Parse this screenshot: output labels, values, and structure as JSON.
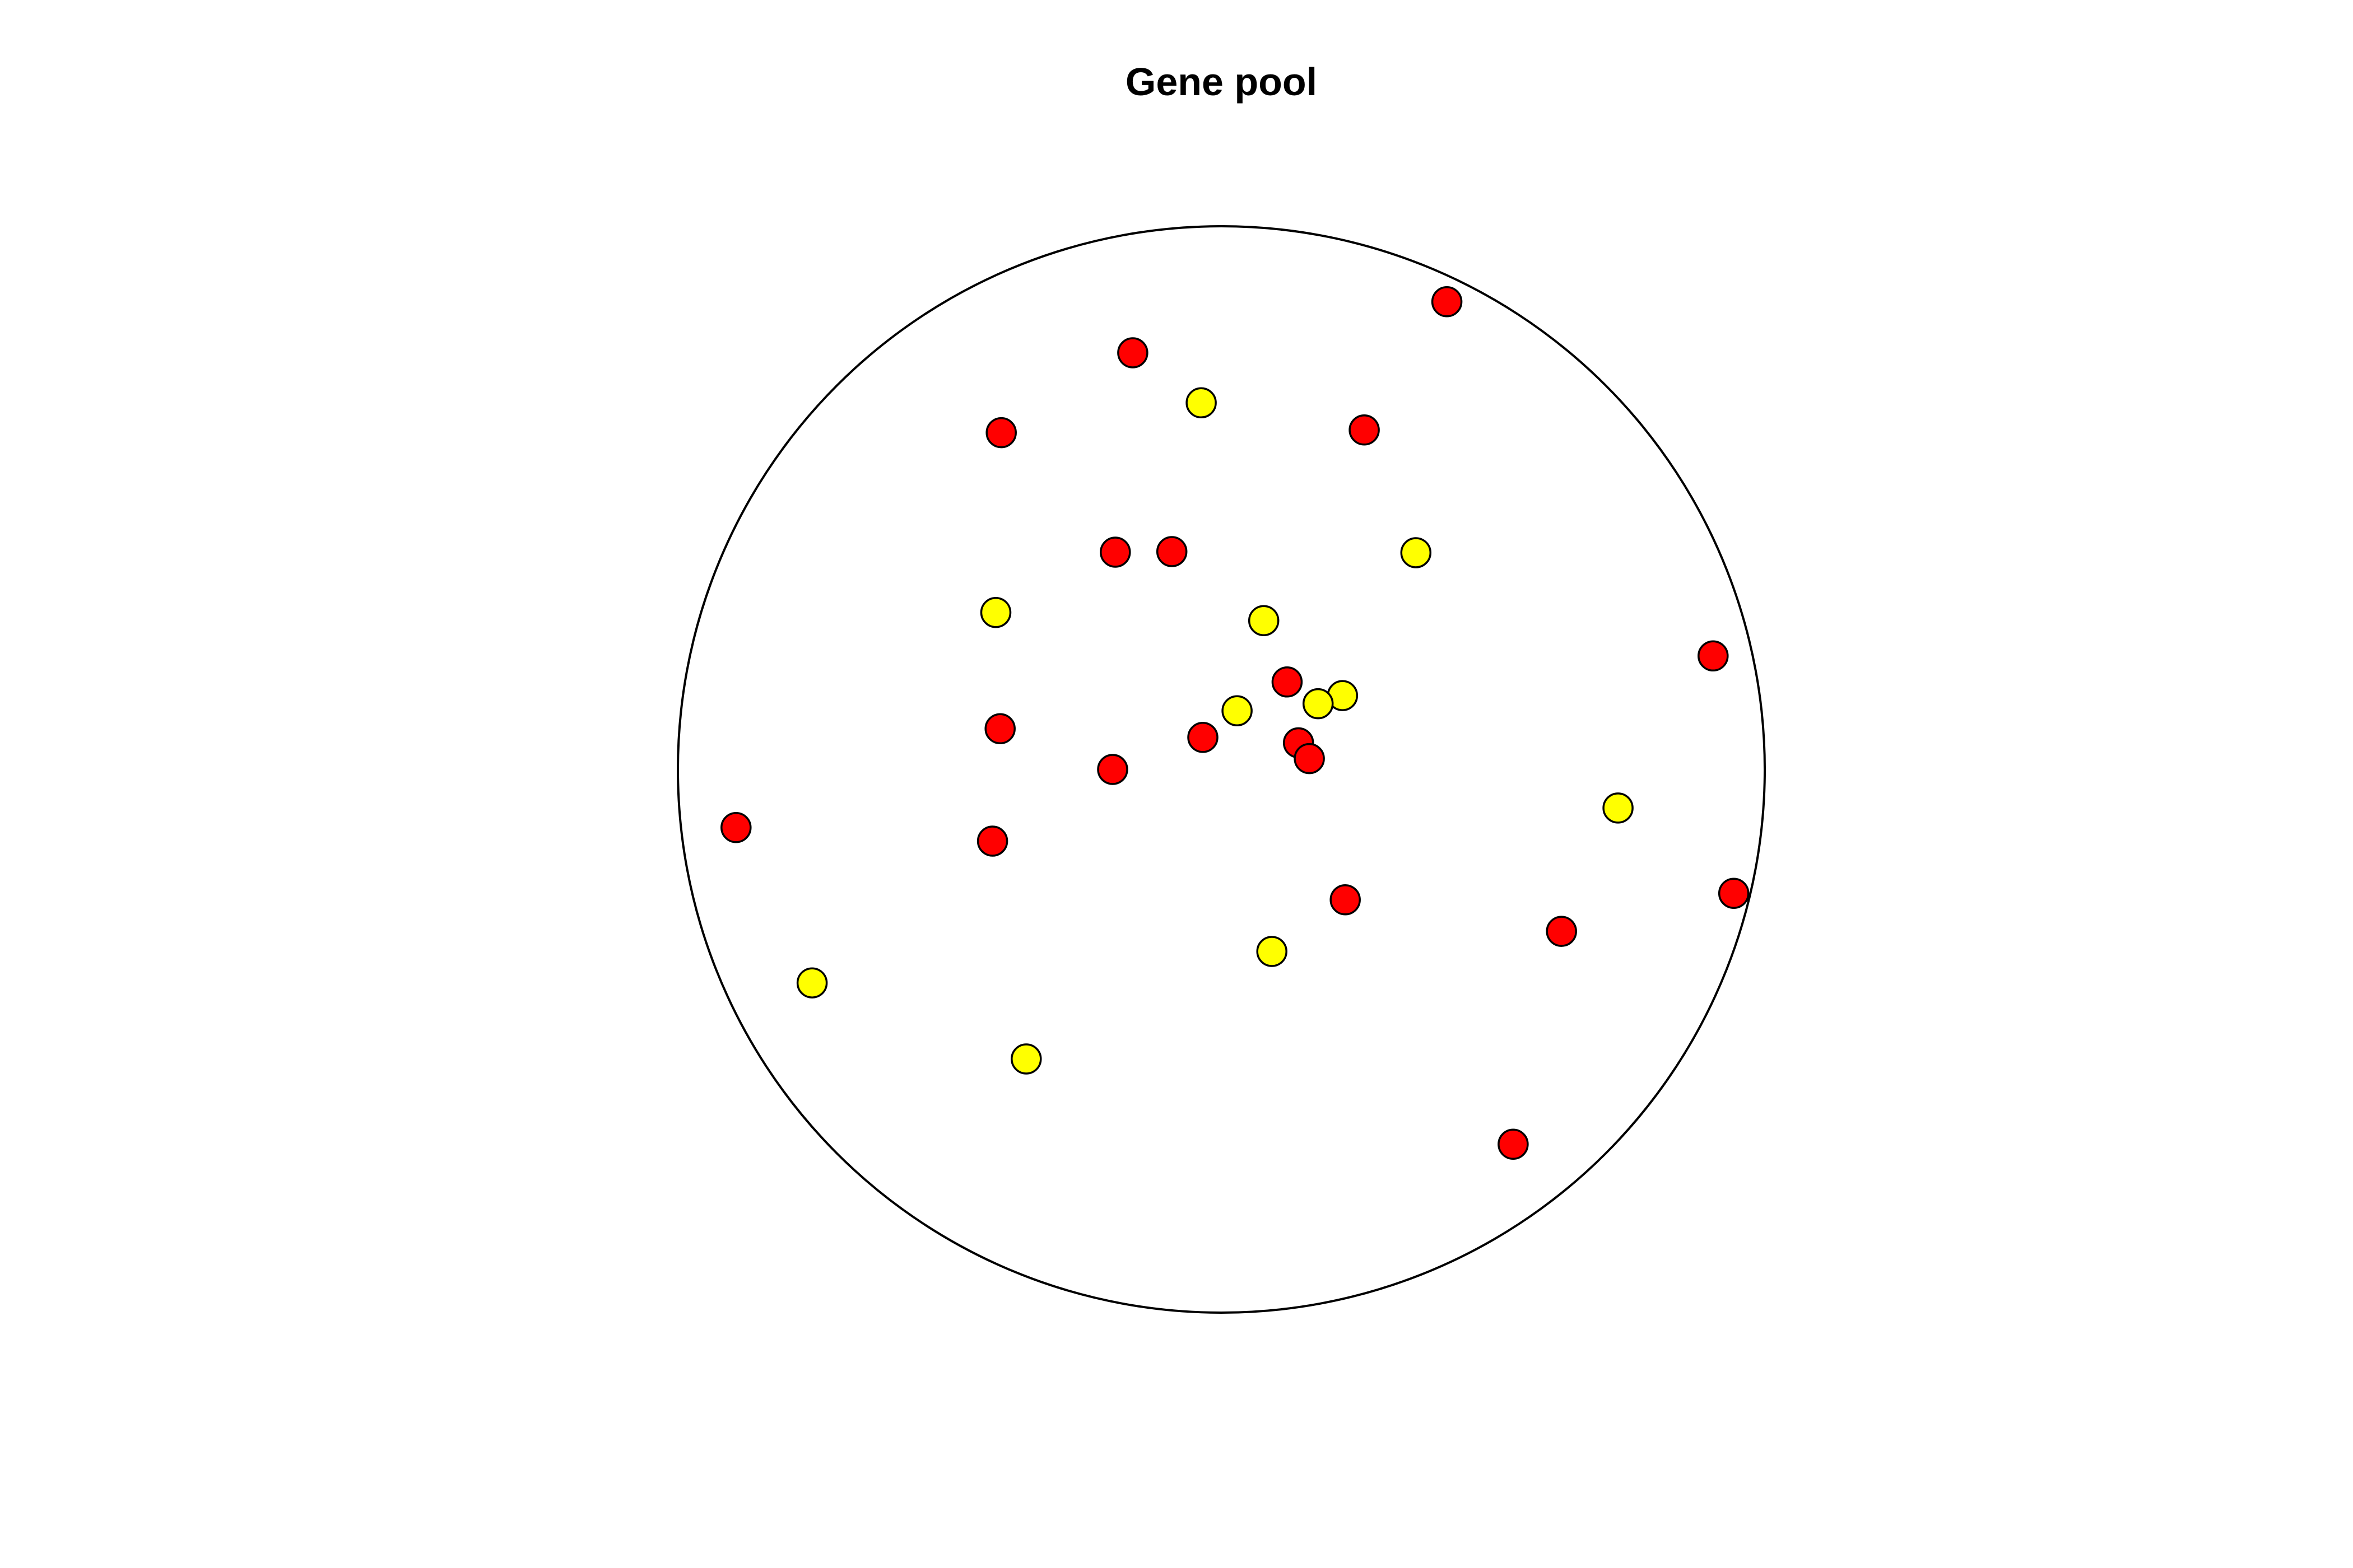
{
  "chart_data": {
    "type": "scatter",
    "title": "Gene pool",
    "xlabel": "",
    "ylabel": "",
    "xlim": [
      -1,
      1
    ],
    "ylim": [
      -1,
      1
    ],
    "grid": false,
    "boundary": "circle",
    "colors": {
      "red": "#ff0000",
      "yellow": "#ffff00",
      "outline": "#000000"
    },
    "series": [
      {
        "color": "#ff0000",
        "points": [
          {
            "x": 0.415,
            "y": 0.861
          },
          {
            "x": -0.163,
            "y": 0.767
          },
          {
            "x": -0.405,
            "y": 0.62
          },
          {
            "x": 0.263,
            "y": 0.625
          },
          {
            "x": -0.195,
            "y": 0.4
          },
          {
            "x": -0.091,
            "y": 0.401
          },
          {
            "x": 0.905,
            "y": 0.209
          },
          {
            "x": 0.121,
            "y": 0.161
          },
          {
            "x": -0.407,
            "y": 0.075
          },
          {
            "x": -0.034,
            "y": 0.059
          },
          {
            "x": 0.142,
            "y": 0.049
          },
          {
            "x": 0.162,
            "y": 0.02
          },
          {
            "x": -0.2,
            "y": 0.0
          },
          {
            "x": -0.893,
            "y": -0.107
          },
          {
            "x": -0.421,
            "y": -0.132
          },
          {
            "x": 0.943,
            "y": -0.228
          },
          {
            "x": 0.228,
            "y": -0.24
          },
          {
            "x": 0.626,
            "y": -0.298
          },
          {
            "x": 0.537,
            "y": -0.69
          }
        ]
      },
      {
        "color": "#ffff00",
        "points": [
          {
            "x": -0.037,
            "y": 0.675
          },
          {
            "x": 0.358,
            "y": 0.399
          },
          {
            "x": -0.415,
            "y": 0.289
          },
          {
            "x": 0.078,
            "y": 0.274
          },
          {
            "x": 0.223,
            "y": 0.136
          },
          {
            "x": 0.178,
            "y": 0.121
          },
          {
            "x": 0.029,
            "y": 0.108
          },
          {
            "x": 0.73,
            "y": -0.071
          },
          {
            "x": 0.093,
            "y": -0.335
          },
          {
            "x": -0.753,
            "y": -0.393
          },
          {
            "x": -0.359,
            "y": -0.533
          }
        ]
      }
    ]
  }
}
